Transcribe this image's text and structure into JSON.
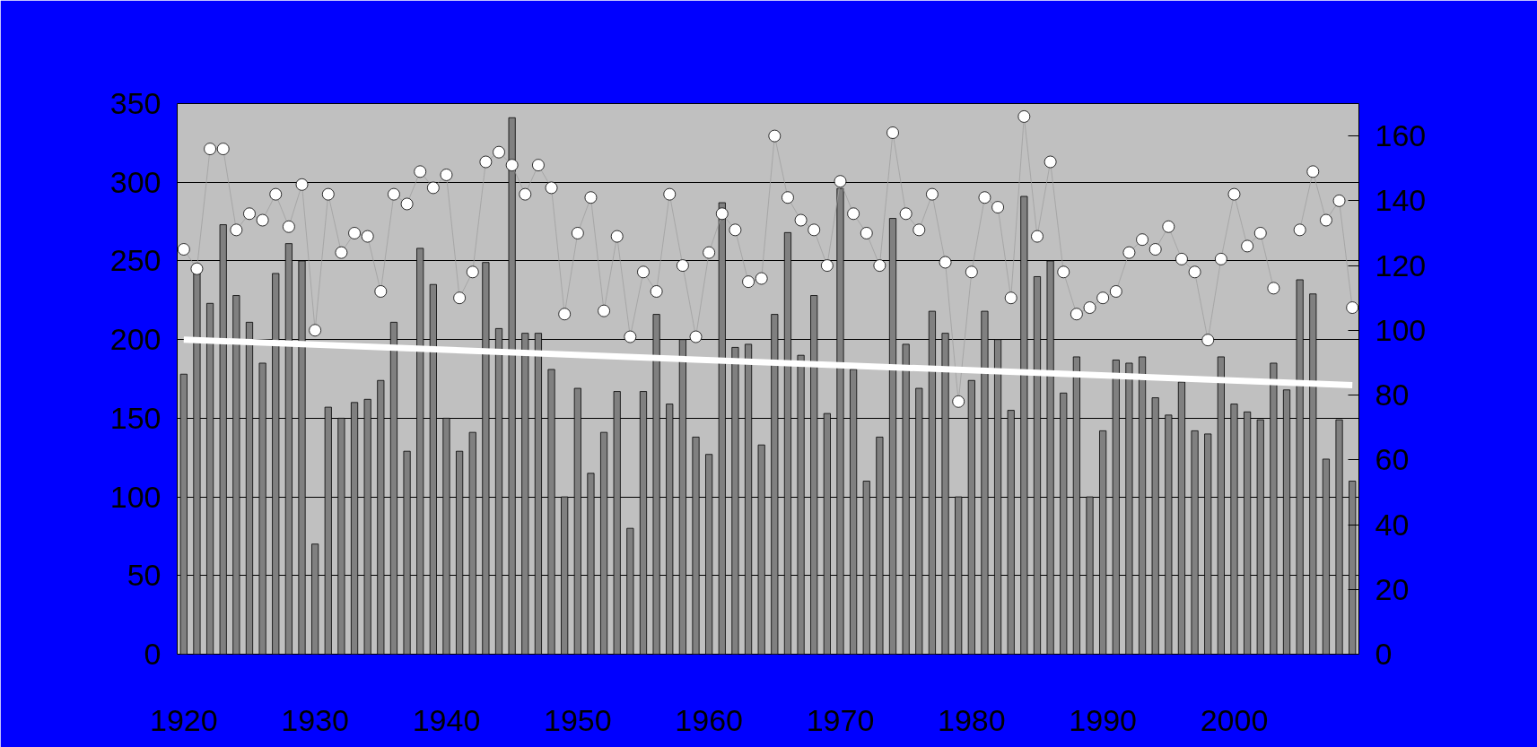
{
  "chart_data": {
    "type": "bar",
    "x": [
      1920,
      1921,
      1922,
      1923,
      1924,
      1925,
      1926,
      1927,
      1928,
      1929,
      1930,
      1931,
      1932,
      1933,
      1934,
      1935,
      1936,
      1937,
      1938,
      1939,
      1940,
      1941,
      1942,
      1943,
      1944,
      1945,
      1946,
      1947,
      1948,
      1949,
      1950,
      1951,
      1952,
      1953,
      1954,
      1955,
      1956,
      1957,
      1958,
      1959,
      1960,
      1961,
      1962,
      1963,
      1964,
      1965,
      1966,
      1967,
      1968,
      1969,
      1970,
      1971,
      1972,
      1973,
      1974,
      1975,
      1976,
      1977,
      1978,
      1979,
      1980,
      1981,
      1982,
      1983,
      1984,
      1985,
      1986,
      1987,
      1988,
      1989,
      1990,
      1991,
      1992,
      1993,
      1994,
      1995,
      1996,
      1997,
      1998,
      1999,
      2000,
      2001,
      2002,
      2003,
      2004,
      2005,
      2006,
      2007,
      2008,
      2009
    ],
    "series": [
      {
        "color": "#808080",
        "values": [
          178,
          242,
          223,
          273,
          228,
          211,
          185,
          242,
          261,
          250,
          70,
          157,
          150,
          160,
          162,
          174,
          211,
          129,
          258,
          235,
          150,
          129,
          141,
          249,
          207,
          341,
          204,
          204,
          181,
          100,
          169,
          115,
          141,
          167,
          80,
          167,
          216,
          159,
          200,
          138,
          127,
          287,
          195,
          197,
          133,
          216,
          268,
          190,
          228,
          153,
          296,
          181,
          110,
          138,
          277,
          197,
          169,
          218,
          204,
          100,
          174,
          218,
          200,
          155,
          291,
          240,
          250,
          166,
          189,
          100,
          142,
          187,
          185,
          189,
          163,
          152,
          173,
          142,
          140,
          189,
          159,
          154,
          149,
          185,
          168,
          238,
          229,
          124,
          149,
          110
        ]
      },
      {
        "type": "line",
        "axis": "y2",
        "color": "#a0a0a0",
        "marker": "circle",
        "values": [
          125,
          119,
          156,
          156,
          131,
          136,
          134,
          142,
          132,
          145,
          100,
          142,
          124,
          130,
          129,
          112,
          142,
          139,
          149,
          144,
          148,
          110,
          118,
          152,
          155,
          151,
          142,
          151,
          144,
          105,
          130,
          141,
          106,
          129,
          98,
          118,
          112,
          142,
          120,
          98,
          124,
          136,
          131,
          115,
          116,
          160,
          141,
          134,
          131,
          120,
          146,
          136,
          130,
          120,
          161,
          136,
          131,
          142,
          121,
          78,
          118,
          141,
          138,
          110,
          166,
          129,
          152,
          118,
          105,
          107,
          110,
          112,
          124,
          128,
          125,
          132,
          122,
          118,
          97,
          122,
          142,
          126,
          130,
          113,
          null,
          131,
          149,
          134,
          140,
          107
        ]
      },
      {
        "type": "line",
        "color": "#ffffff",
        "x": [
          1920,
          2009
        ],
        "values": [
          200,
          171
        ]
      }
    ],
    "xlim": [
      1919.5,
      2009.5
    ],
    "xticks": [
      1920,
      1930,
      1940,
      1950,
      1960,
      1970,
      1980,
      1990,
      2000
    ],
    "ylim": [
      0,
      350
    ],
    "yticks": [
      0,
      50,
      100,
      150,
      200,
      250,
      300,
      350
    ],
    "y2lim": [
      0,
      170
    ],
    "y2ticks": [
      0,
      20,
      40,
      60,
      80,
      100,
      120,
      140,
      160
    ],
    "grid": "y"
  }
}
